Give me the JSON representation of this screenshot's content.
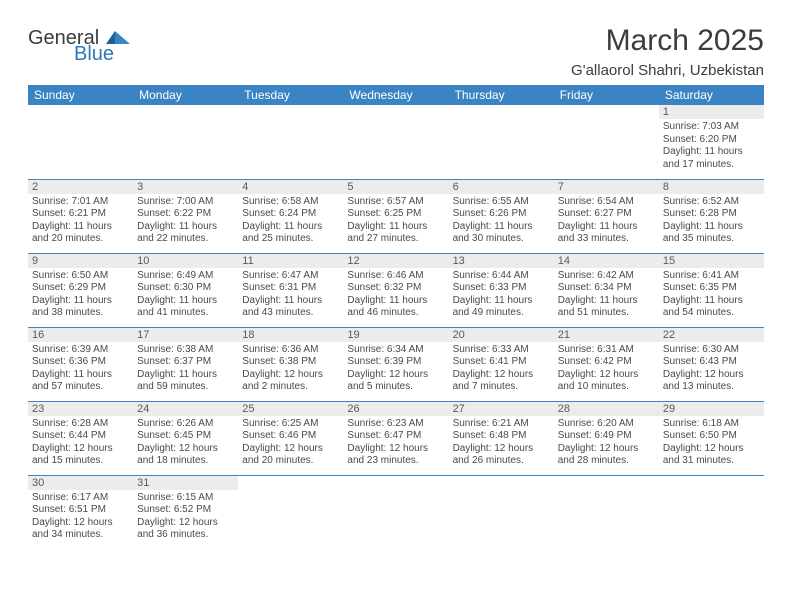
{
  "brand": {
    "general": "General",
    "blue": "Blue"
  },
  "title": {
    "month": "March 2025",
    "location": "G'allaorol Shahri, Uzbekistan"
  },
  "colors": {
    "header_bg": "#3b84c4",
    "header_text": "#ffffff",
    "cell_border": "#3b84c4",
    "daynum_bg": "#ececec",
    "text": "#3c3c3c",
    "brand_blue": "#2f77ba"
  },
  "day_headers": [
    "Sunday",
    "Monday",
    "Tuesday",
    "Wednesday",
    "Thursday",
    "Friday",
    "Saturday"
  ],
  "weeks": [
    [
      null,
      null,
      null,
      null,
      null,
      null,
      {
        "n": "1",
        "sr": "Sunrise: 7:03 AM",
        "ss": "Sunset: 6:20 PM",
        "d1": "Daylight: 11 hours",
        "d2": "and 17 minutes."
      }
    ],
    [
      {
        "n": "2",
        "sr": "Sunrise: 7:01 AM",
        "ss": "Sunset: 6:21 PM",
        "d1": "Daylight: 11 hours",
        "d2": "and 20 minutes."
      },
      {
        "n": "3",
        "sr": "Sunrise: 7:00 AM",
        "ss": "Sunset: 6:22 PM",
        "d1": "Daylight: 11 hours",
        "d2": "and 22 minutes."
      },
      {
        "n": "4",
        "sr": "Sunrise: 6:58 AM",
        "ss": "Sunset: 6:24 PM",
        "d1": "Daylight: 11 hours",
        "d2": "and 25 minutes."
      },
      {
        "n": "5",
        "sr": "Sunrise: 6:57 AM",
        "ss": "Sunset: 6:25 PM",
        "d1": "Daylight: 11 hours",
        "d2": "and 27 minutes."
      },
      {
        "n": "6",
        "sr": "Sunrise: 6:55 AM",
        "ss": "Sunset: 6:26 PM",
        "d1": "Daylight: 11 hours",
        "d2": "and 30 minutes."
      },
      {
        "n": "7",
        "sr": "Sunrise: 6:54 AM",
        "ss": "Sunset: 6:27 PM",
        "d1": "Daylight: 11 hours",
        "d2": "and 33 minutes."
      },
      {
        "n": "8",
        "sr": "Sunrise: 6:52 AM",
        "ss": "Sunset: 6:28 PM",
        "d1": "Daylight: 11 hours",
        "d2": "and 35 minutes."
      }
    ],
    [
      {
        "n": "9",
        "sr": "Sunrise: 6:50 AM",
        "ss": "Sunset: 6:29 PM",
        "d1": "Daylight: 11 hours",
        "d2": "and 38 minutes."
      },
      {
        "n": "10",
        "sr": "Sunrise: 6:49 AM",
        "ss": "Sunset: 6:30 PM",
        "d1": "Daylight: 11 hours",
        "d2": "and 41 minutes."
      },
      {
        "n": "11",
        "sr": "Sunrise: 6:47 AM",
        "ss": "Sunset: 6:31 PM",
        "d1": "Daylight: 11 hours",
        "d2": "and 43 minutes."
      },
      {
        "n": "12",
        "sr": "Sunrise: 6:46 AM",
        "ss": "Sunset: 6:32 PM",
        "d1": "Daylight: 11 hours",
        "d2": "and 46 minutes."
      },
      {
        "n": "13",
        "sr": "Sunrise: 6:44 AM",
        "ss": "Sunset: 6:33 PM",
        "d1": "Daylight: 11 hours",
        "d2": "and 49 minutes."
      },
      {
        "n": "14",
        "sr": "Sunrise: 6:42 AM",
        "ss": "Sunset: 6:34 PM",
        "d1": "Daylight: 11 hours",
        "d2": "and 51 minutes."
      },
      {
        "n": "15",
        "sr": "Sunrise: 6:41 AM",
        "ss": "Sunset: 6:35 PM",
        "d1": "Daylight: 11 hours",
        "d2": "and 54 minutes."
      }
    ],
    [
      {
        "n": "16",
        "sr": "Sunrise: 6:39 AM",
        "ss": "Sunset: 6:36 PM",
        "d1": "Daylight: 11 hours",
        "d2": "and 57 minutes."
      },
      {
        "n": "17",
        "sr": "Sunrise: 6:38 AM",
        "ss": "Sunset: 6:37 PM",
        "d1": "Daylight: 11 hours",
        "d2": "and 59 minutes."
      },
      {
        "n": "18",
        "sr": "Sunrise: 6:36 AM",
        "ss": "Sunset: 6:38 PM",
        "d1": "Daylight: 12 hours",
        "d2": "and 2 minutes."
      },
      {
        "n": "19",
        "sr": "Sunrise: 6:34 AM",
        "ss": "Sunset: 6:39 PM",
        "d1": "Daylight: 12 hours",
        "d2": "and 5 minutes."
      },
      {
        "n": "20",
        "sr": "Sunrise: 6:33 AM",
        "ss": "Sunset: 6:41 PM",
        "d1": "Daylight: 12 hours",
        "d2": "and 7 minutes."
      },
      {
        "n": "21",
        "sr": "Sunrise: 6:31 AM",
        "ss": "Sunset: 6:42 PM",
        "d1": "Daylight: 12 hours",
        "d2": "and 10 minutes."
      },
      {
        "n": "22",
        "sr": "Sunrise: 6:30 AM",
        "ss": "Sunset: 6:43 PM",
        "d1": "Daylight: 12 hours",
        "d2": "and 13 minutes."
      }
    ],
    [
      {
        "n": "23",
        "sr": "Sunrise: 6:28 AM",
        "ss": "Sunset: 6:44 PM",
        "d1": "Daylight: 12 hours",
        "d2": "and 15 minutes."
      },
      {
        "n": "24",
        "sr": "Sunrise: 6:26 AM",
        "ss": "Sunset: 6:45 PM",
        "d1": "Daylight: 12 hours",
        "d2": "and 18 minutes."
      },
      {
        "n": "25",
        "sr": "Sunrise: 6:25 AM",
        "ss": "Sunset: 6:46 PM",
        "d1": "Daylight: 12 hours",
        "d2": "and 20 minutes."
      },
      {
        "n": "26",
        "sr": "Sunrise: 6:23 AM",
        "ss": "Sunset: 6:47 PM",
        "d1": "Daylight: 12 hours",
        "d2": "and 23 minutes."
      },
      {
        "n": "27",
        "sr": "Sunrise: 6:21 AM",
        "ss": "Sunset: 6:48 PM",
        "d1": "Daylight: 12 hours",
        "d2": "and 26 minutes."
      },
      {
        "n": "28",
        "sr": "Sunrise: 6:20 AM",
        "ss": "Sunset: 6:49 PM",
        "d1": "Daylight: 12 hours",
        "d2": "and 28 minutes."
      },
      {
        "n": "29",
        "sr": "Sunrise: 6:18 AM",
        "ss": "Sunset: 6:50 PM",
        "d1": "Daylight: 12 hours",
        "d2": "and 31 minutes."
      }
    ],
    [
      {
        "n": "30",
        "sr": "Sunrise: 6:17 AM",
        "ss": "Sunset: 6:51 PM",
        "d1": "Daylight: 12 hours",
        "d2": "and 34 minutes."
      },
      {
        "n": "31",
        "sr": "Sunrise: 6:15 AM",
        "ss": "Sunset: 6:52 PM",
        "d1": "Daylight: 12 hours",
        "d2": "and 36 minutes."
      },
      null,
      null,
      null,
      null,
      null
    ]
  ]
}
